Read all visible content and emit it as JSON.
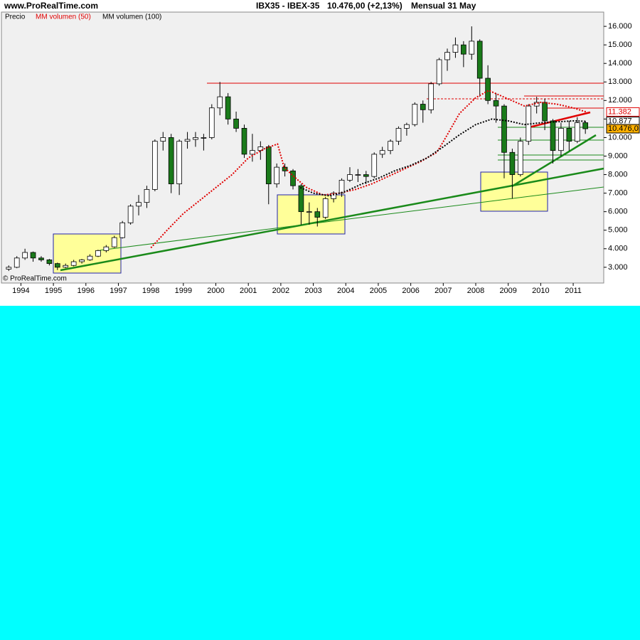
{
  "chart_data": {
    "type": "candlestick",
    "site": "www.ProRealTime.com",
    "title": "IBX35 - IBEX-35",
    "subtitle": "10.476,00 (+2,13%)",
    "period": "Mensual  31 May",
    "footer": "© ProRealTime.com",
    "price_name": "Precio",
    "up_color": "#ffffff",
    "down_color": "#1a7a1a",
    "x": [
      1993.625,
      1993.875,
      1994.125,
      1994.375,
      1994.625,
      1994.875,
      1995.125,
      1995.375,
      1995.625,
      1995.875,
      1996.125,
      1996.375,
      1996.625,
      1996.875,
      1997.125,
      1997.375,
      1997.625,
      1997.875,
      1998.125,
      1998.375,
      1998.625,
      1998.875,
      1999.125,
      1999.375,
      1999.625,
      1999.875,
      2000.125,
      2000.375,
      2000.625,
      2000.875,
      2001.125,
      2001.375,
      2001.625,
      2001.875,
      2002.125,
      2002.375,
      2002.625,
      2002.875,
      2003.125,
      2003.375,
      2003.625,
      2003.875,
      2004.125,
      2004.375,
      2004.625,
      2004.875,
      2005.125,
      2005.375,
      2005.625,
      2005.875,
      2006.125,
      2006.375,
      2006.625,
      2006.875,
      2007.125,
      2007.375,
      2007.625,
      2007.875,
      2008.125,
      2008.375,
      2008.625,
      2008.875,
      2009.125,
      2009.375,
      2009.625,
      2009.875,
      2010.125,
      2010.375,
      2010.625,
      2010.875,
      2011.125,
      2011.375
    ],
    "open": [
      2900,
      3000,
      3500,
      3800,
      3500,
      3400,
      3200,
      3000,
      3100,
      3300,
      3400,
      3600,
      3900,
      4100,
      4600,
      5400,
      6300,
      6500,
      7200,
      9800,
      10000,
      7500,
      9800,
      9900,
      10000,
      10000,
      11600,
      12200,
      11000,
      10500,
      9100,
      9300,
      9500,
      7500,
      8400,
      8200,
      7400,
      6000,
      6000,
      5700,
      6700,
      7000,
      7700,
      8000,
      8000,
      7900,
      9100,
      9300,
      9800,
      10500,
      10700,
      11800,
      11500,
      12900,
      14200,
      14600,
      15000,
      14500,
      15200,
      13200,
      12000,
      11700,
      9200,
      8000,
      9800,
      11700,
      11900,
      10900,
      9300,
      10500,
      9800,
      10800
    ],
    "high": [
      3100,
      3600,
      4000,
      3850,
      3600,
      3450,
      3250,
      3200,
      3400,
      3450,
      3700,
      3950,
      4200,
      4700,
      5500,
      6400,
      6900,
      7400,
      9900,
      10300,
      10200,
      9900,
      10300,
      10300,
      10200,
      11800,
      13000,
      12400,
      11400,
      10700,
      10200,
      9800,
      9600,
      8600,
      8600,
      8300,
      7500,
      6500,
      6200,
      6800,
      7100,
      7800,
      8400,
      8300,
      8200,
      9200,
      9500,
      9900,
      10600,
      10800,
      11900,
      12000,
      13000,
      14300,
      14800,
      15400,
      15200,
      16000,
      15300,
      13900,
      12400,
      11800,
      9400,
      10000,
      11800,
      12200,
      12100,
      11000,
      10800,
      10900,
      11100,
      10900
    ],
    "low": [
      2800,
      2950,
      3400,
      3300,
      3300,
      3100,
      2850,
      2950,
      3050,
      3200,
      3350,
      3550,
      3800,
      4050,
      4550,
      5300,
      5800,
      6200,
      7100,
      9300,
      7000,
      6900,
      9400,
      9500,
      9300,
      9900,
      11200,
      10700,
      10300,
      8900,
      8700,
      8800,
      6400,
      7300,
      7900,
      7200,
      5300,
      5300,
      5200,
      5600,
      6500,
      6800,
      7600,
      7600,
      7500,
      7800,
      8900,
      9100,
      9600,
      10100,
      10600,
      10800,
      11300,
      12800,
      13600,
      14300,
      13800,
      14200,
      12200,
      11800,
      10800,
      7800,
      6700,
      7900,
      9600,
      11300,
      10400,
      8600,
      9000,
      9300,
      9700,
      10200
    ],
    "close": [
      3000,
      3500,
      3800,
      3500,
      3400,
      3200,
      3000,
      3100,
      3300,
      3400,
      3600,
      3900,
      4100,
      4600,
      5400,
      6300,
      6500,
      7200,
      9800,
      10000,
      7500,
      9800,
      9900,
      10000,
      10000,
      11600,
      12200,
      11000,
      10500,
      9100,
      9300,
      9500,
      7500,
      8400,
      8200,
      7400,
      6000,
      6000,
      5700,
      6700,
      7000,
      7700,
      8000,
      8000,
      7900,
      9100,
      9300,
      9800,
      10500,
      10700,
      11800,
      11500,
      12900,
      14200,
      14600,
      15000,
      14500,
      15200,
      13200,
      12000,
      11700,
      9200,
      8000,
      9800,
      11700,
      11900,
      10900,
      9300,
      10500,
      9800,
      10800,
      10476
    ],
    "series": [
      {
        "name": "MM volumen (50)",
        "color": "#e00000",
        "x": [
          1998.0,
          1998.5,
          1999.0,
          1999.5,
          2000.0,
          2000.5,
          2001.0,
          2001.5,
          2001.9,
          2002.1,
          2002.4,
          2002.8,
          2003.3,
          2003.8,
          2004.3,
          2004.8,
          2005.3,
          2005.8,
          2006.3,
          2006.8,
          2007.0,
          2007.5,
          2008.0,
          2008.4,
          2009.0,
          2009.5,
          2010.0,
          2010.5,
          2011.0,
          2011.4
        ],
        "values": [
          4050,
          5000,
          5900,
          6600,
          7300,
          8000,
          8900,
          9400,
          9650,
          8400,
          7900,
          7300,
          6900,
          7000,
          7200,
          7500,
          7900,
          8300,
          8700,
          9200,
          9770,
          11300,
          12150,
          12540,
          12080,
          11700,
          11900,
          11800,
          11600,
          11382
        ]
      },
      {
        "name": "MM volumen (100)",
        "color": "#000000",
        "x": [
          2002.6,
          2003.0,
          2003.5,
          2004.0,
          2004.5,
          2005.0,
          2005.5,
          2006.0,
          2006.5,
          2007.0,
          2007.5,
          2008.0,
          2008.5,
          2009.0,
          2009.5,
          2010.0,
          2010.5,
          2011.0,
          2011.4
        ],
        "values": [
          7300,
          7000,
          6850,
          7100,
          7500,
          7800,
          8200,
          8500,
          8900,
          9500,
          10150,
          10700,
          11000,
          10900,
          10700,
          10800,
          10850,
          10900,
          10877
        ]
      }
    ],
    "price_labels": [
      {
        "value": 11382,
        "label": "11.382",
        "color": "#e00000",
        "fill": "#ffffff"
      },
      {
        "value": 10877,
        "label": "10.877",
        "color": "#000000",
        "fill": "#ffffff"
      },
      {
        "value": 10476,
        "label": "10.476,0",
        "color": "#000000",
        "fill": "#ffb000"
      }
    ],
    "xlim": [
      1993.4,
      2011.94
    ],
    "xticks": [
      1994,
      1995,
      1996,
      1997,
      1998,
      1999,
      2000,
      2001,
      2002,
      2003,
      2004,
      2005,
      2006,
      2007,
      2008,
      2009,
      2010,
      2011
    ],
    "ylim": [
      2150,
      16770
    ],
    "yticks": [
      {
        "value": 3000,
        "label": "3.000"
      },
      {
        "value": 4000,
        "label": "4.000"
      },
      {
        "value": 5000,
        "label": "5.000"
      },
      {
        "value": 6000,
        "label": "6.000"
      },
      {
        "value": 7000,
        "label": "7.000"
      },
      {
        "value": 8000,
        "label": "8.000"
      },
      {
        "value": 9000,
        "label": "9.000"
      },
      {
        "value": 10000,
        "label": "10.000"
      },
      {
        "value": 11000,
        "label": "11.000"
      },
      {
        "value": 12000,
        "label": "12.000"
      },
      {
        "value": 13000,
        "label": "13.000"
      },
      {
        "value": 14000,
        "label": "14.000"
      },
      {
        "value": 15000,
        "label": "15.000"
      },
      {
        "value": 16000,
        "label": "16.000"
      }
    ]
  }
}
